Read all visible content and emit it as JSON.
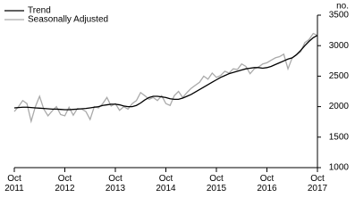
{
  "chart_data": {
    "type": "line",
    "categories": [
      "Oct 2011",
      null,
      null,
      null,
      null,
      null,
      null,
      null,
      null,
      null,
      null,
      null,
      "Oct 2012",
      null,
      null,
      null,
      null,
      null,
      null,
      null,
      null,
      null,
      null,
      null,
      "Oct 2013",
      null,
      null,
      null,
      null,
      null,
      null,
      null,
      null,
      null,
      null,
      null,
      "Oct 2014",
      null,
      null,
      null,
      null,
      null,
      null,
      null,
      null,
      null,
      null,
      null,
      "Oct 2015",
      null,
      null,
      null,
      null,
      null,
      null,
      null,
      null,
      null,
      null,
      null,
      "Oct 2016",
      null,
      null,
      null,
      null,
      null,
      null,
      null,
      null,
      null,
      null,
      null,
      "Oct 2017"
    ],
    "y_label": "no.",
    "series": [
      {
        "name": "Trend",
        "color": "#000000",
        "values": [
          1980,
          1985,
          1990,
          1990,
          1985,
          1980,
          1975,
          1970,
          1965,
          1960,
          1960,
          1955,
          1950,
          1950,
          1955,
          1960,
          1965,
          1970,
          1980,
          1990,
          2000,
          2020,
          2030,
          2040,
          2040,
          2030,
          2010,
          2000,
          2000,
          2020,
          2060,
          2110,
          2150,
          2170,
          2170,
          2160,
          2150,
          2130,
          2120,
          2120,
          2140,
          2170,
          2200,
          2240,
          2280,
          2320,
          2360,
          2400,
          2440,
          2480,
          2510,
          2540,
          2560,
          2580,
          2600,
          2620,
          2630,
          2640,
          2640,
          2630,
          2640,
          2660,
          2690,
          2720,
          2750,
          2780,
          2800,
          2850,
          2920,
          3000,
          3070,
          3130,
          3170
        ]
      },
      {
        "name": "Seasonally Adjusted",
        "color": "#aaaaaa",
        "values": [
          1920,
          2000,
          2100,
          2050,
          1760,
          2000,
          2170,
          1960,
          1850,
          1930,
          2000,
          1870,
          1850,
          1990,
          1860,
          1970,
          1960,
          1920,
          1790,
          2000,
          1980,
          2050,
          2150,
          2010,
          2050,
          1940,
          2000,
          1960,
          2050,
          2100,
          2230,
          2180,
          2120,
          2150,
          2100,
          2180,
          2050,
          2020,
          2180,
          2250,
          2150,
          2230,
          2300,
          2350,
          2400,
          2500,
          2450,
          2550,
          2480,
          2510,
          2580,
          2550,
          2620,
          2610,
          2700,
          2660,
          2540,
          2620,
          2650,
          2700,
          2720,
          2760,
          2800,
          2820,
          2860,
          2620,
          2800,
          2850,
          2900,
          3050,
          3100,
          3200,
          3170
        ]
      }
    ],
    "ylim": [
      1000,
      3500
    ],
    "yticks": [
      1000,
      1500,
      2000,
      2500,
      3000,
      3500
    ],
    "legend": "upper left",
    "grid": false
  }
}
